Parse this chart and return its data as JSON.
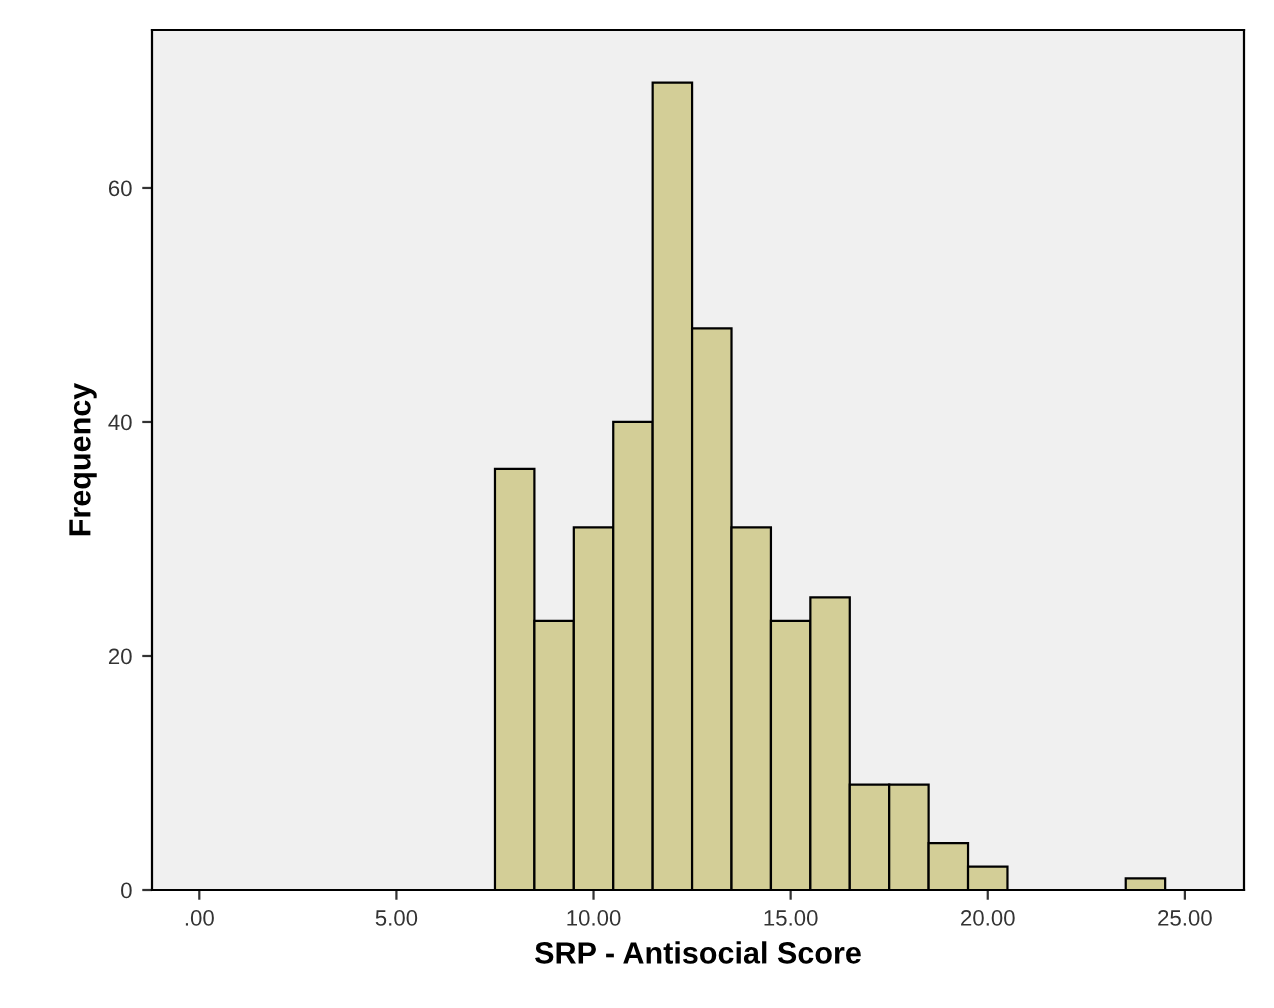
{
  "chart_data": {
    "type": "histogram",
    "xlabel": "SRP - Antisocial Score",
    "ylabel": "Frequency",
    "bins": [
      7.5,
      8.5,
      9.5,
      10.5,
      11.5,
      12.5,
      13.5,
      14.5,
      15.5,
      16.5,
      17.5,
      18.5,
      19.5,
      20.5,
      21.5,
      22.5,
      23.5,
      24.5
    ],
    "values": [
      36,
      23,
      31,
      40,
      69,
      48,
      31,
      23,
      25,
      9,
      9,
      4,
      2,
      0,
      0,
      0,
      1
    ],
    "color": "#d3ce97",
    "xlim": [
      -1.2,
      26.5
    ],
    "ylim": [
      0,
      73.5
    ],
    "xticks": [
      {
        "value": 0,
        "label": ".00"
      },
      {
        "value": 5,
        "label": "5.00"
      },
      {
        "value": 10,
        "label": "10.00"
      },
      {
        "value": 15,
        "label": "15.00"
      },
      {
        "value": 20,
        "label": "20.00"
      },
      {
        "value": 25,
        "label": "25.00"
      }
    ],
    "yticks": [
      0,
      20,
      40,
      60
    ],
    "grid": false
  }
}
